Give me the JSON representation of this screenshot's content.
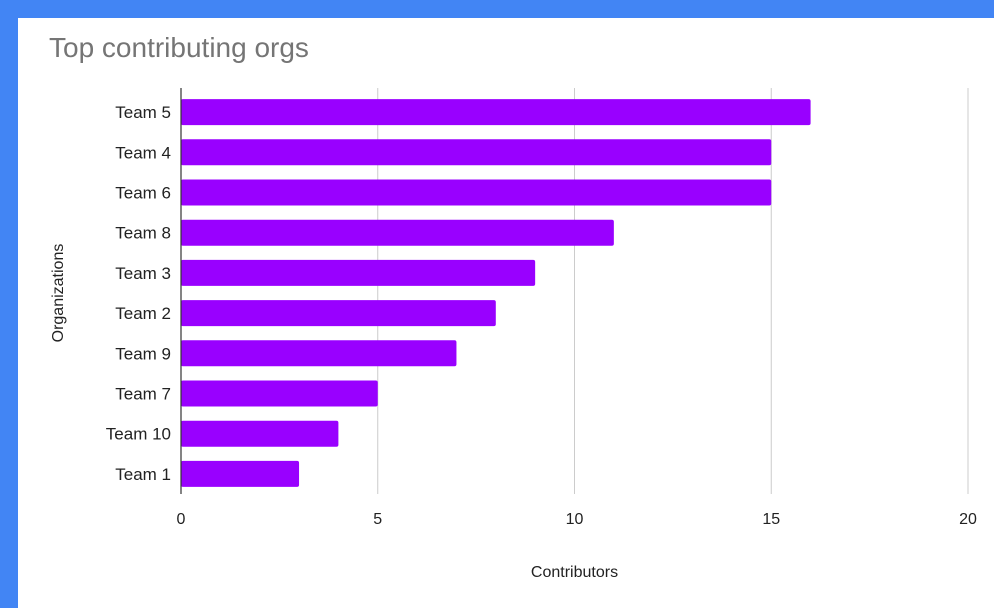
{
  "chart_data": {
    "type": "bar",
    "orientation": "horizontal",
    "title": "Top contributing orgs",
    "xlabel": "Contributors",
    "ylabel": "Organizations",
    "categories": [
      "Team 5",
      "Team 4",
      "Team 6",
      "Team 8",
      "Team 3",
      "Team 2",
      "Team 9",
      "Team 7",
      "Team 10",
      "Team 1"
    ],
    "values": [
      16,
      15,
      15,
      11,
      9,
      8,
      7,
      5,
      4,
      3
    ],
    "xlim": [
      0,
      20
    ],
    "xticks": [
      0,
      5,
      10,
      15,
      20
    ],
    "grid": "vertical",
    "legend": "none",
    "bar_color": "#9900ff"
  },
  "colors": {
    "frame": "#4285f4",
    "background": "#ffffff",
    "title": "#757575",
    "gridline": "#cccccc",
    "axis": "#333333"
  }
}
